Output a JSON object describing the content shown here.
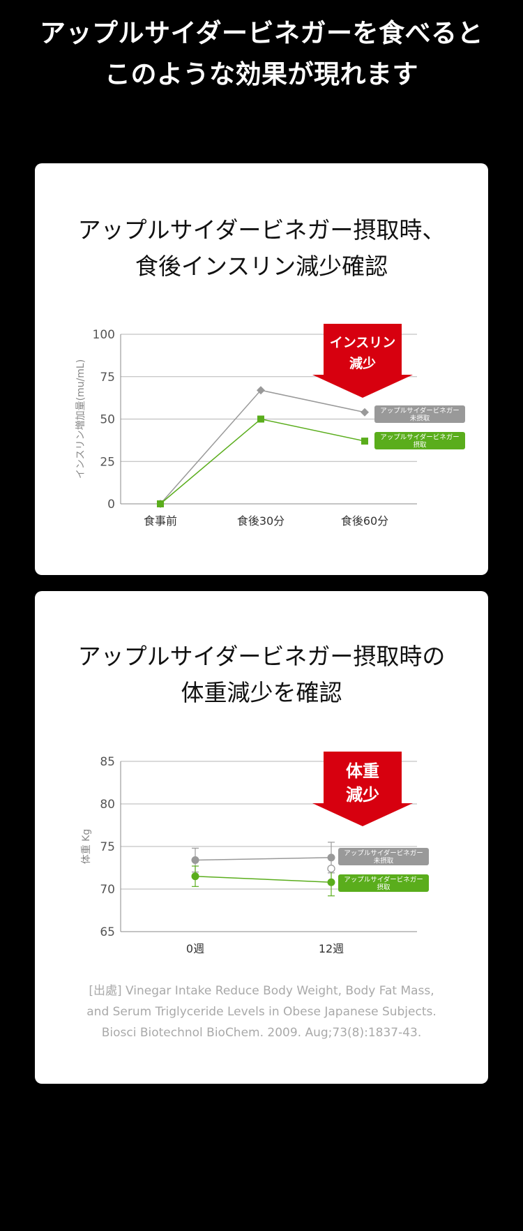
{
  "headline": {
    "line1": "アップルサイダービネガーを食べると",
    "line2": "このような効果が現れます"
  },
  "colors": {
    "background": "#000000",
    "card": "#ffffff",
    "not_taken": "#999999",
    "taken": "#5aad1c",
    "arrow": "#d7000f",
    "grid": "#b5b5b5",
    "source_text": "#a9a9a9"
  },
  "cards": [
    {
      "title_line1": "アップルサイダービネガー摂取時、",
      "title_line2": "食後インスリン減少確認",
      "callout_line1": "インスリン",
      "callout_line2": "減少"
    },
    {
      "title_line1": "アップルサイダービネガー摂取時の",
      "title_line2": "体重減少を確認",
      "callout_line1": "体重",
      "callout_line2": "減少",
      "source_line1": "[出處] Vinegar Intake Reduce Body Weight, Body Fat Mass,",
      "source_line2": "and Serum Triglyceride Levels in Obese Japanese Subjects.",
      "source_line3": "Biosci Biotechnol BioChem. 2009. Aug;73(8):1837-43."
    }
  ],
  "chart_data": [
    {
      "type": "line",
      "title": "アップルサイダービネガー摂取時、食後インスリン減少確認",
      "ylabel": "インスリン増加量(mu/mL)",
      "xlabel": "",
      "categories": [
        "食事前",
        "食後30分",
        "食後60分"
      ],
      "ylim": [
        0,
        100
      ],
      "yticks": [
        0,
        25,
        50,
        75,
        100
      ],
      "grid": true,
      "legend_placement": "right",
      "series": [
        {
          "name": "アップルサイダービネガー未摂取",
          "values": [
            0,
            67,
            54
          ],
          "color": "#999999",
          "marker": "diamond"
        },
        {
          "name": "アップルサイダービネガー摂取",
          "values": [
            0,
            50,
            37
          ],
          "color": "#5aad1c",
          "marker": "square"
        }
      ],
      "legend_labels": [
        {
          "line1": "アップルサイダービネガー",
          "line2": "未摂取"
        },
        {
          "line1": "アップルサイダービネガー",
          "line2": "摂取"
        }
      ]
    },
    {
      "type": "line",
      "title": "アップルサイダービネガー摂取時の体重減少を確認",
      "ylabel": "体重 Kg",
      "xlabel": "",
      "categories": [
        "0週",
        "12週"
      ],
      "ylim": [
        65,
        85
      ],
      "yticks": [
        65,
        70,
        75,
        80,
        85
      ],
      "grid": true,
      "legend_placement": "right",
      "series": [
        {
          "name": "アップルサイダービネガー未摂取",
          "values": [
            73.4,
            73.7
          ],
          "error": [
            1.4,
            1.8
          ],
          "color": "#999999",
          "marker": "circle"
        },
        {
          "name": "アップルサイダービネガー摂取",
          "values": [
            71.5,
            70.8
          ],
          "error": [
            1.2,
            1.6
          ],
          "color": "#5aad1c",
          "marker": "circle"
        }
      ],
      "legend_labels": [
        {
          "line1": "アップルサイダービネガー",
          "line2": "未摂取"
        },
        {
          "line1": "アップルサイダービネガー",
          "line2": "摂取"
        }
      ]
    }
  ]
}
